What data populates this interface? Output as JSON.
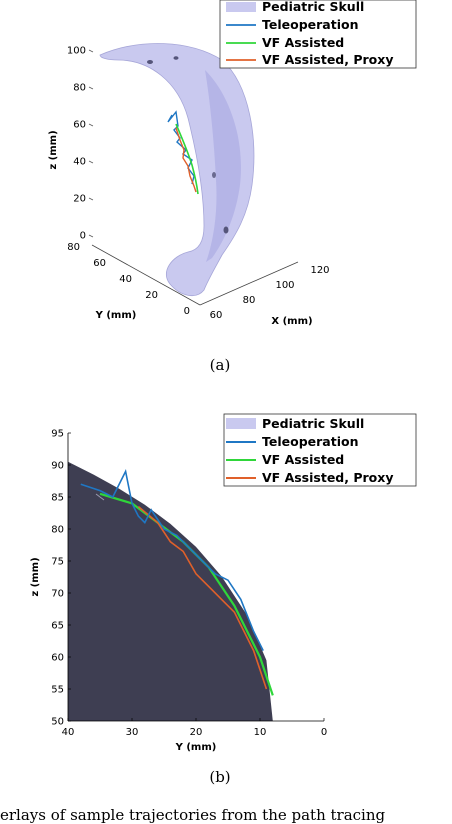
{
  "legend_a": [
    "Pediatric Skull",
    "Teleoperation",
    "VF Assisted",
    "VF Assisted, Proxy"
  ],
  "legend_b": [
    "Pediatric Skull",
    "Teleoperation",
    "VF Assisted",
    "VF Assisted, Proxy"
  ],
  "colors": {
    "skull": "#c9c9ef",
    "skull_dark": "#3e3e52",
    "teleoperation": "#1f77c4",
    "vf_assisted": "#2fd63a",
    "vf_proxy": "#e0602a"
  },
  "panel_a": {
    "caption": "(a)",
    "zlabel": "z (mm)",
    "ylabel": "Y (mm)",
    "xlabel": "X (mm)",
    "z_ticks": [
      "100",
      "80",
      "60",
      "40",
      "20",
      "0"
    ],
    "y_ticks": [
      "80",
      "60",
      "40",
      "20",
      "0"
    ],
    "x_ticks": [
      "60",
      "80",
      "100",
      "120"
    ]
  },
  "panel_b": {
    "caption": "(b)",
    "ylabel": "z (mm)",
    "xlabel": "Y (mm)",
    "y_ticks": [
      "95",
      "90",
      "85",
      "80",
      "75",
      "70",
      "65",
      "60",
      "55",
      "50"
    ],
    "x_ticks": [
      "40",
      "30",
      "20",
      "10",
      "0"
    ]
  },
  "bottom_text": "erlays of sample trajectories from the path tracing",
  "chart_data": [
    {
      "type": "line",
      "title": "",
      "zlabel": "z (mm)",
      "xlabel": "X (mm)",
      "ylabel": "Y (mm)",
      "zlim": [
        0,
        100
      ],
      "ylim": [
        0,
        80
      ],
      "xlim": [
        60,
        120
      ],
      "legend": "top-right",
      "series": [
        {
          "name": "Pediatric Skull"
        },
        {
          "name": "Teleoperation"
        },
        {
          "name": "VF Assisted"
        },
        {
          "name": "VF Assisted, Proxy"
        }
      ]
    },
    {
      "type": "line",
      "title": "",
      "xlabel": "Y (mm)",
      "ylabel": "z (mm)",
      "xlim": [
        40,
        0
      ],
      "ylim": [
        50,
        95
      ],
      "legend": "top-right",
      "series": [
        {
          "name": "VF Assisted",
          "x": [
            35,
            30,
            26,
            22,
            18,
            14,
            10,
            8
          ],
          "y": [
            85.5,
            84,
            81,
            78,
            74,
            68,
            60,
            54
          ]
        },
        {
          "name": "VF Assisted, Proxy",
          "x": [
            29,
            26,
            24,
            22,
            20,
            18,
            16,
            14,
            12.5,
            11,
            10,
            9
          ],
          "y": [
            83.5,
            81,
            78,
            76.5,
            73,
            71,
            69,
            67,
            64,
            61,
            58,
            55
          ]
        },
        {
          "name": "Teleoperation",
          "x": [
            38,
            35,
            33,
            31,
            30,
            29,
            28,
            27,
            25,
            23,
            21,
            19,
            17,
            15,
            13,
            11,
            10,
            9.5
          ],
          "y": [
            87,
            86,
            85,
            89,
            84,
            82,
            81,
            83,
            80,
            79,
            77,
            75,
            73,
            72,
            69,
            64,
            62,
            61
          ]
        }
      ]
    }
  ]
}
